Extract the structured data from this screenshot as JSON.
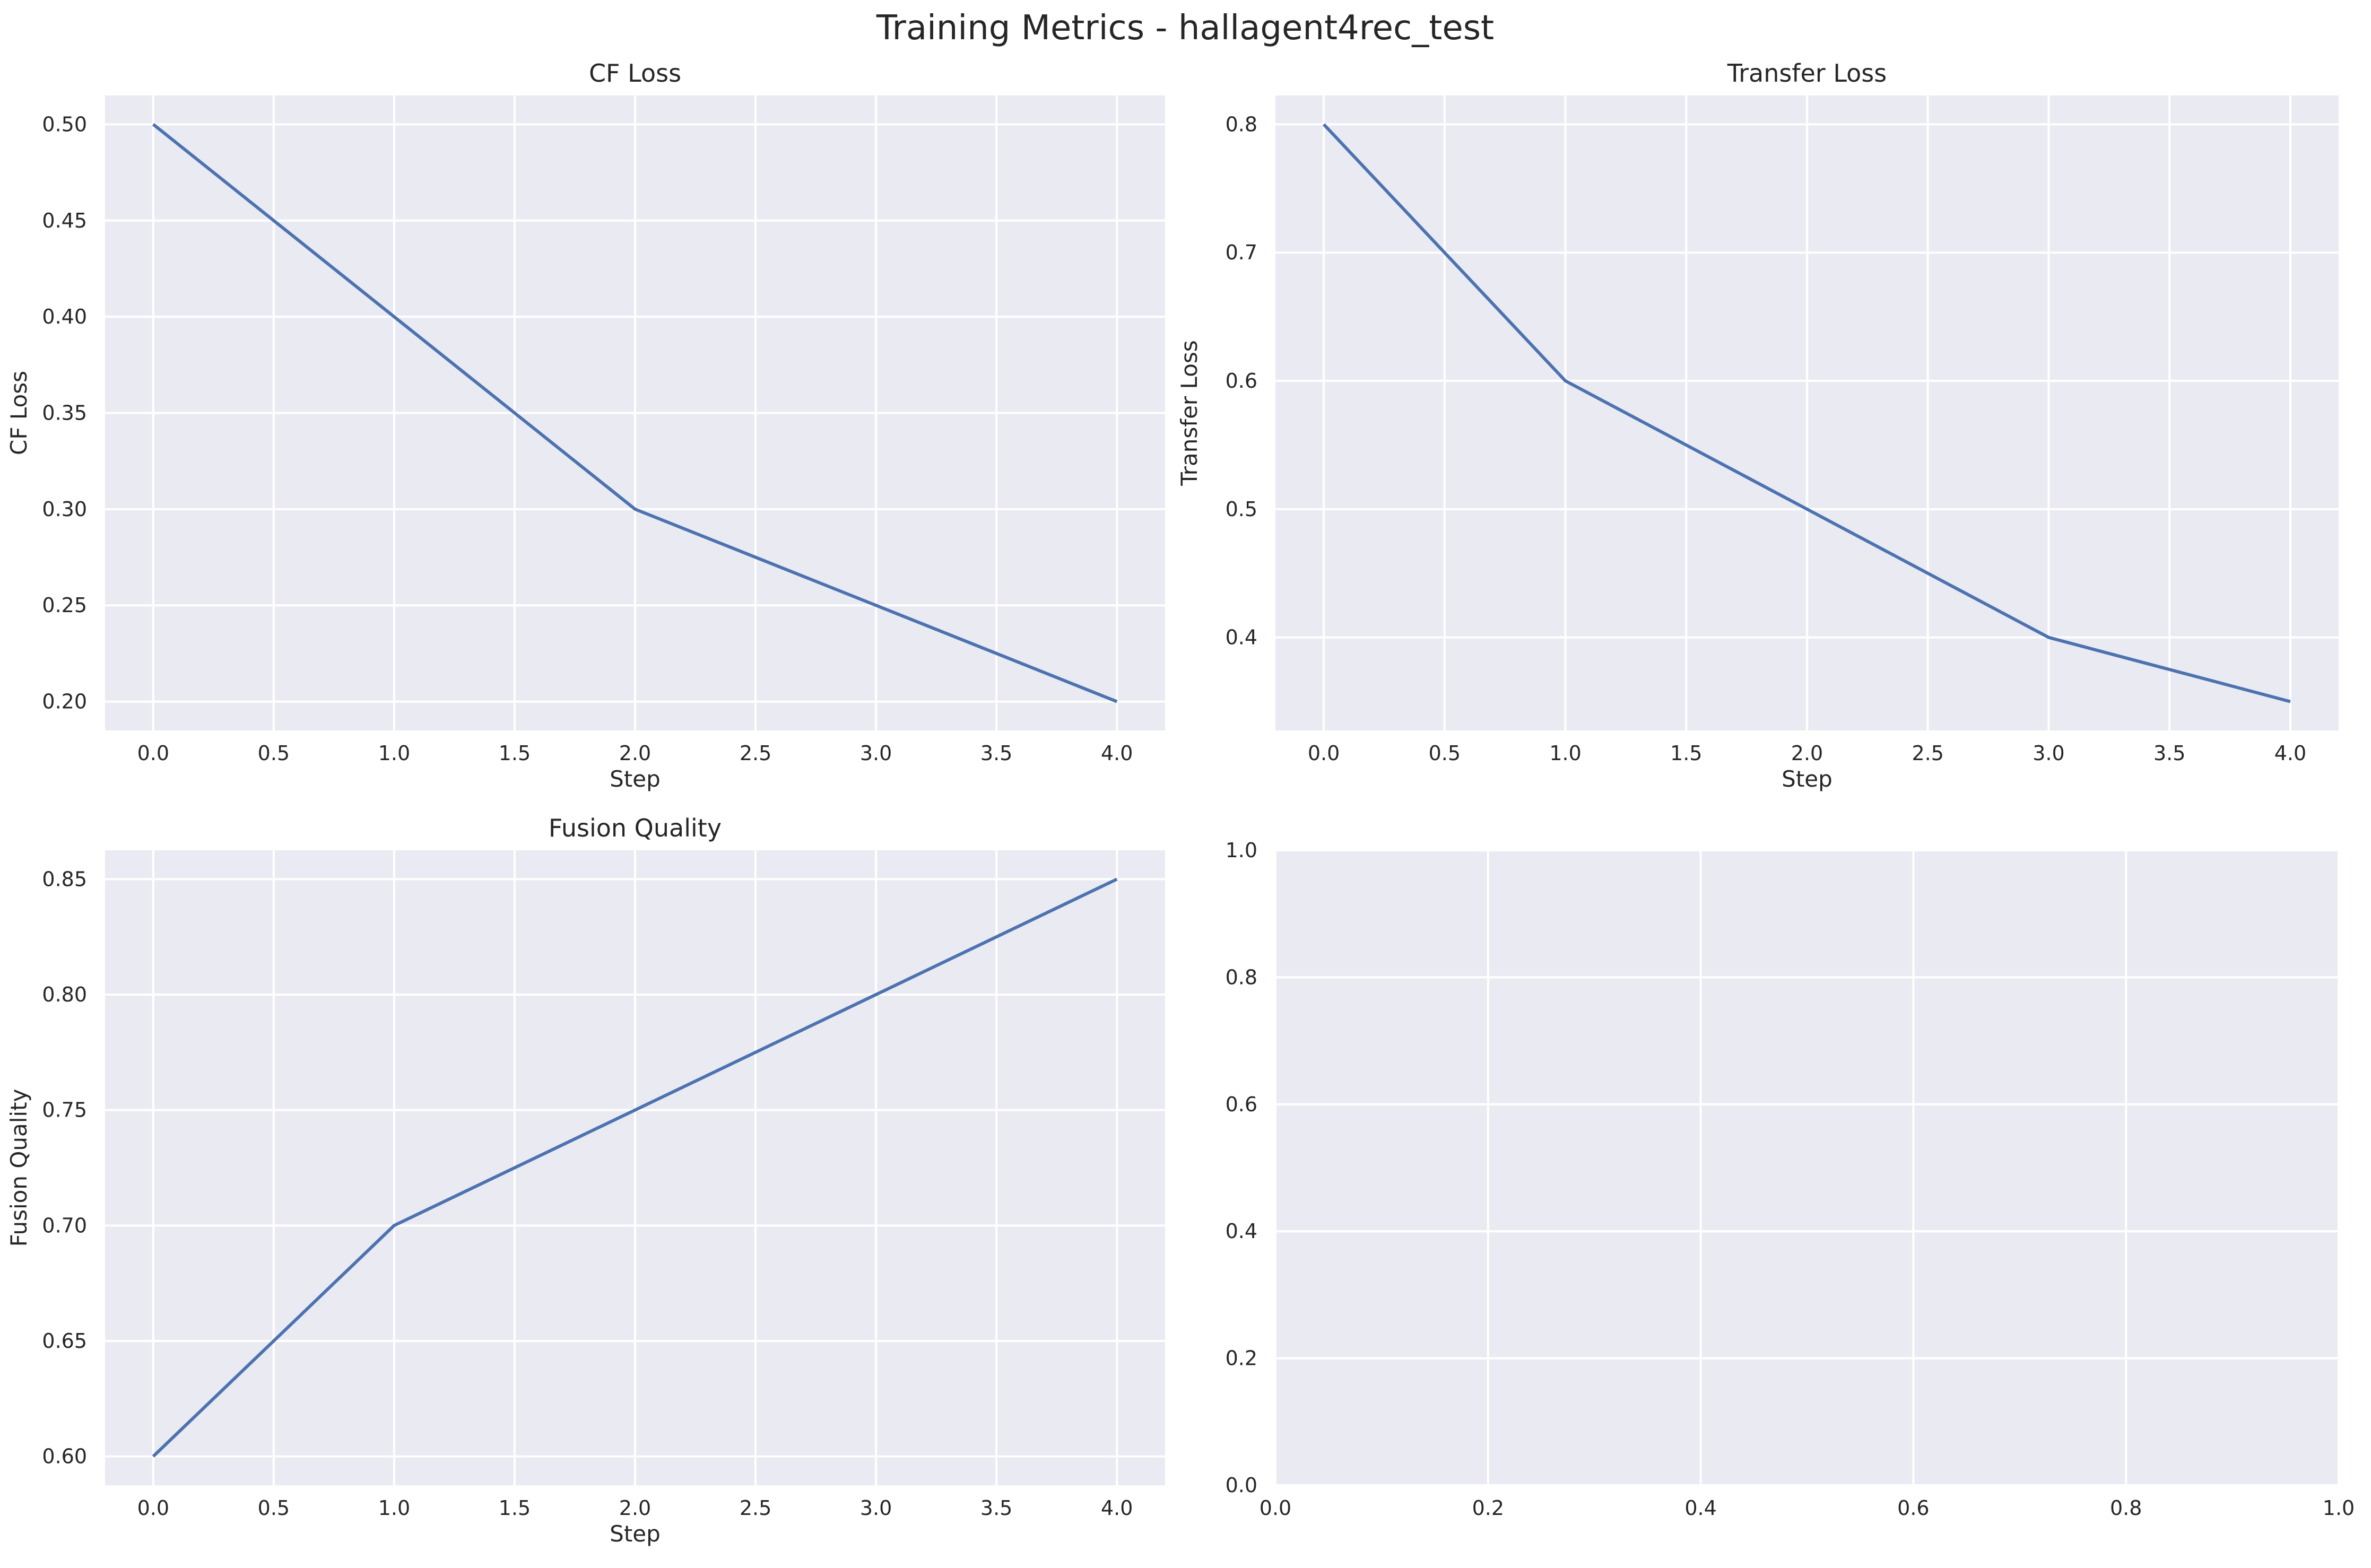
{
  "figure": {
    "suptitle": "Training Metrics - hallagent4rec_test"
  },
  "colors": {
    "series": "#4c72b0",
    "plot_background": "#eaeaf2",
    "grid": "#ffffff",
    "text": "#262626"
  },
  "chart_data": [
    {
      "type": "line",
      "title": "CF Loss",
      "xlabel": "Step",
      "ylabel": "CF Loss",
      "xlim": [
        -0.2,
        4.2
      ],
      "ylim": [
        0.185,
        0.515
      ],
      "xticks": [
        0.0,
        0.5,
        1.0,
        1.5,
        2.0,
        2.5,
        3.0,
        3.5,
        4.0
      ],
      "xtick_labels": [
        "0.0",
        "0.5",
        "1.0",
        "1.5",
        "2.0",
        "2.5",
        "3.0",
        "3.5",
        "4.0"
      ],
      "yticks": [
        0.2,
        0.25,
        0.3,
        0.35,
        0.4,
        0.45,
        0.5
      ],
      "ytick_labels": [
        "0.20",
        "0.25",
        "0.30",
        "0.35",
        "0.40",
        "0.45",
        "0.50"
      ],
      "grid": true,
      "series": [
        {
          "x": [
            0,
            1,
            2,
            3,
            4
          ],
          "values": [
            0.5,
            0.4,
            0.3,
            0.25,
            0.2
          ]
        }
      ]
    },
    {
      "type": "line",
      "title": "Transfer Loss",
      "xlabel": "Step",
      "ylabel": "Transfer Loss",
      "xlim": [
        -0.2,
        4.2
      ],
      "ylim": [
        0.3275,
        0.8225
      ],
      "xticks": [
        0.0,
        0.5,
        1.0,
        1.5,
        2.0,
        2.5,
        3.0,
        3.5,
        4.0
      ],
      "xtick_labels": [
        "0.0",
        "0.5",
        "1.0",
        "1.5",
        "2.0",
        "2.5",
        "3.0",
        "3.5",
        "4.0"
      ],
      "yticks": [
        0.4,
        0.5,
        0.6,
        0.7,
        0.8
      ],
      "ytick_labels": [
        "0.4",
        "0.5",
        "0.6",
        "0.7",
        "0.8"
      ],
      "grid": true,
      "series": [
        {
          "x": [
            0,
            1,
            2,
            3,
            4
          ],
          "values": [
            0.8,
            0.6,
            0.5,
            0.4,
            0.35
          ]
        }
      ]
    },
    {
      "type": "line",
      "title": "Fusion Quality",
      "xlabel": "Step",
      "ylabel": "Fusion Quality",
      "xlim": [
        -0.2,
        4.2
      ],
      "ylim": [
        0.5875,
        0.8625
      ],
      "xticks": [
        0.0,
        0.5,
        1.0,
        1.5,
        2.0,
        2.5,
        3.0,
        3.5,
        4.0
      ],
      "xtick_labels": [
        "0.0",
        "0.5",
        "1.0",
        "1.5",
        "2.0",
        "2.5",
        "3.0",
        "3.5",
        "4.0"
      ],
      "yticks": [
        0.6,
        0.65,
        0.7,
        0.75,
        0.8,
        0.85
      ],
      "ytick_labels": [
        "0.60",
        "0.65",
        "0.70",
        "0.75",
        "0.80",
        "0.85"
      ],
      "grid": true,
      "series": [
        {
          "x": [
            0,
            1,
            2,
            3,
            4
          ],
          "values": [
            0.6,
            0.7,
            0.75,
            0.8,
            0.85
          ]
        }
      ]
    },
    {
      "type": "line",
      "title": "",
      "xlabel": "",
      "ylabel": "",
      "xlim": [
        0,
        1
      ],
      "ylim": [
        0,
        1
      ],
      "xticks": [
        0.0,
        0.2,
        0.4,
        0.6,
        0.8,
        1.0
      ],
      "xtick_labels": [
        "0.0",
        "0.2",
        "0.4",
        "0.6",
        "0.8",
        "1.0"
      ],
      "yticks": [
        0.0,
        0.2,
        0.4,
        0.6,
        0.8,
        1.0
      ],
      "ytick_labels": [
        "0.0",
        "0.2",
        "0.4",
        "0.6",
        "0.8",
        "1.0"
      ],
      "grid": true,
      "series": []
    }
  ]
}
